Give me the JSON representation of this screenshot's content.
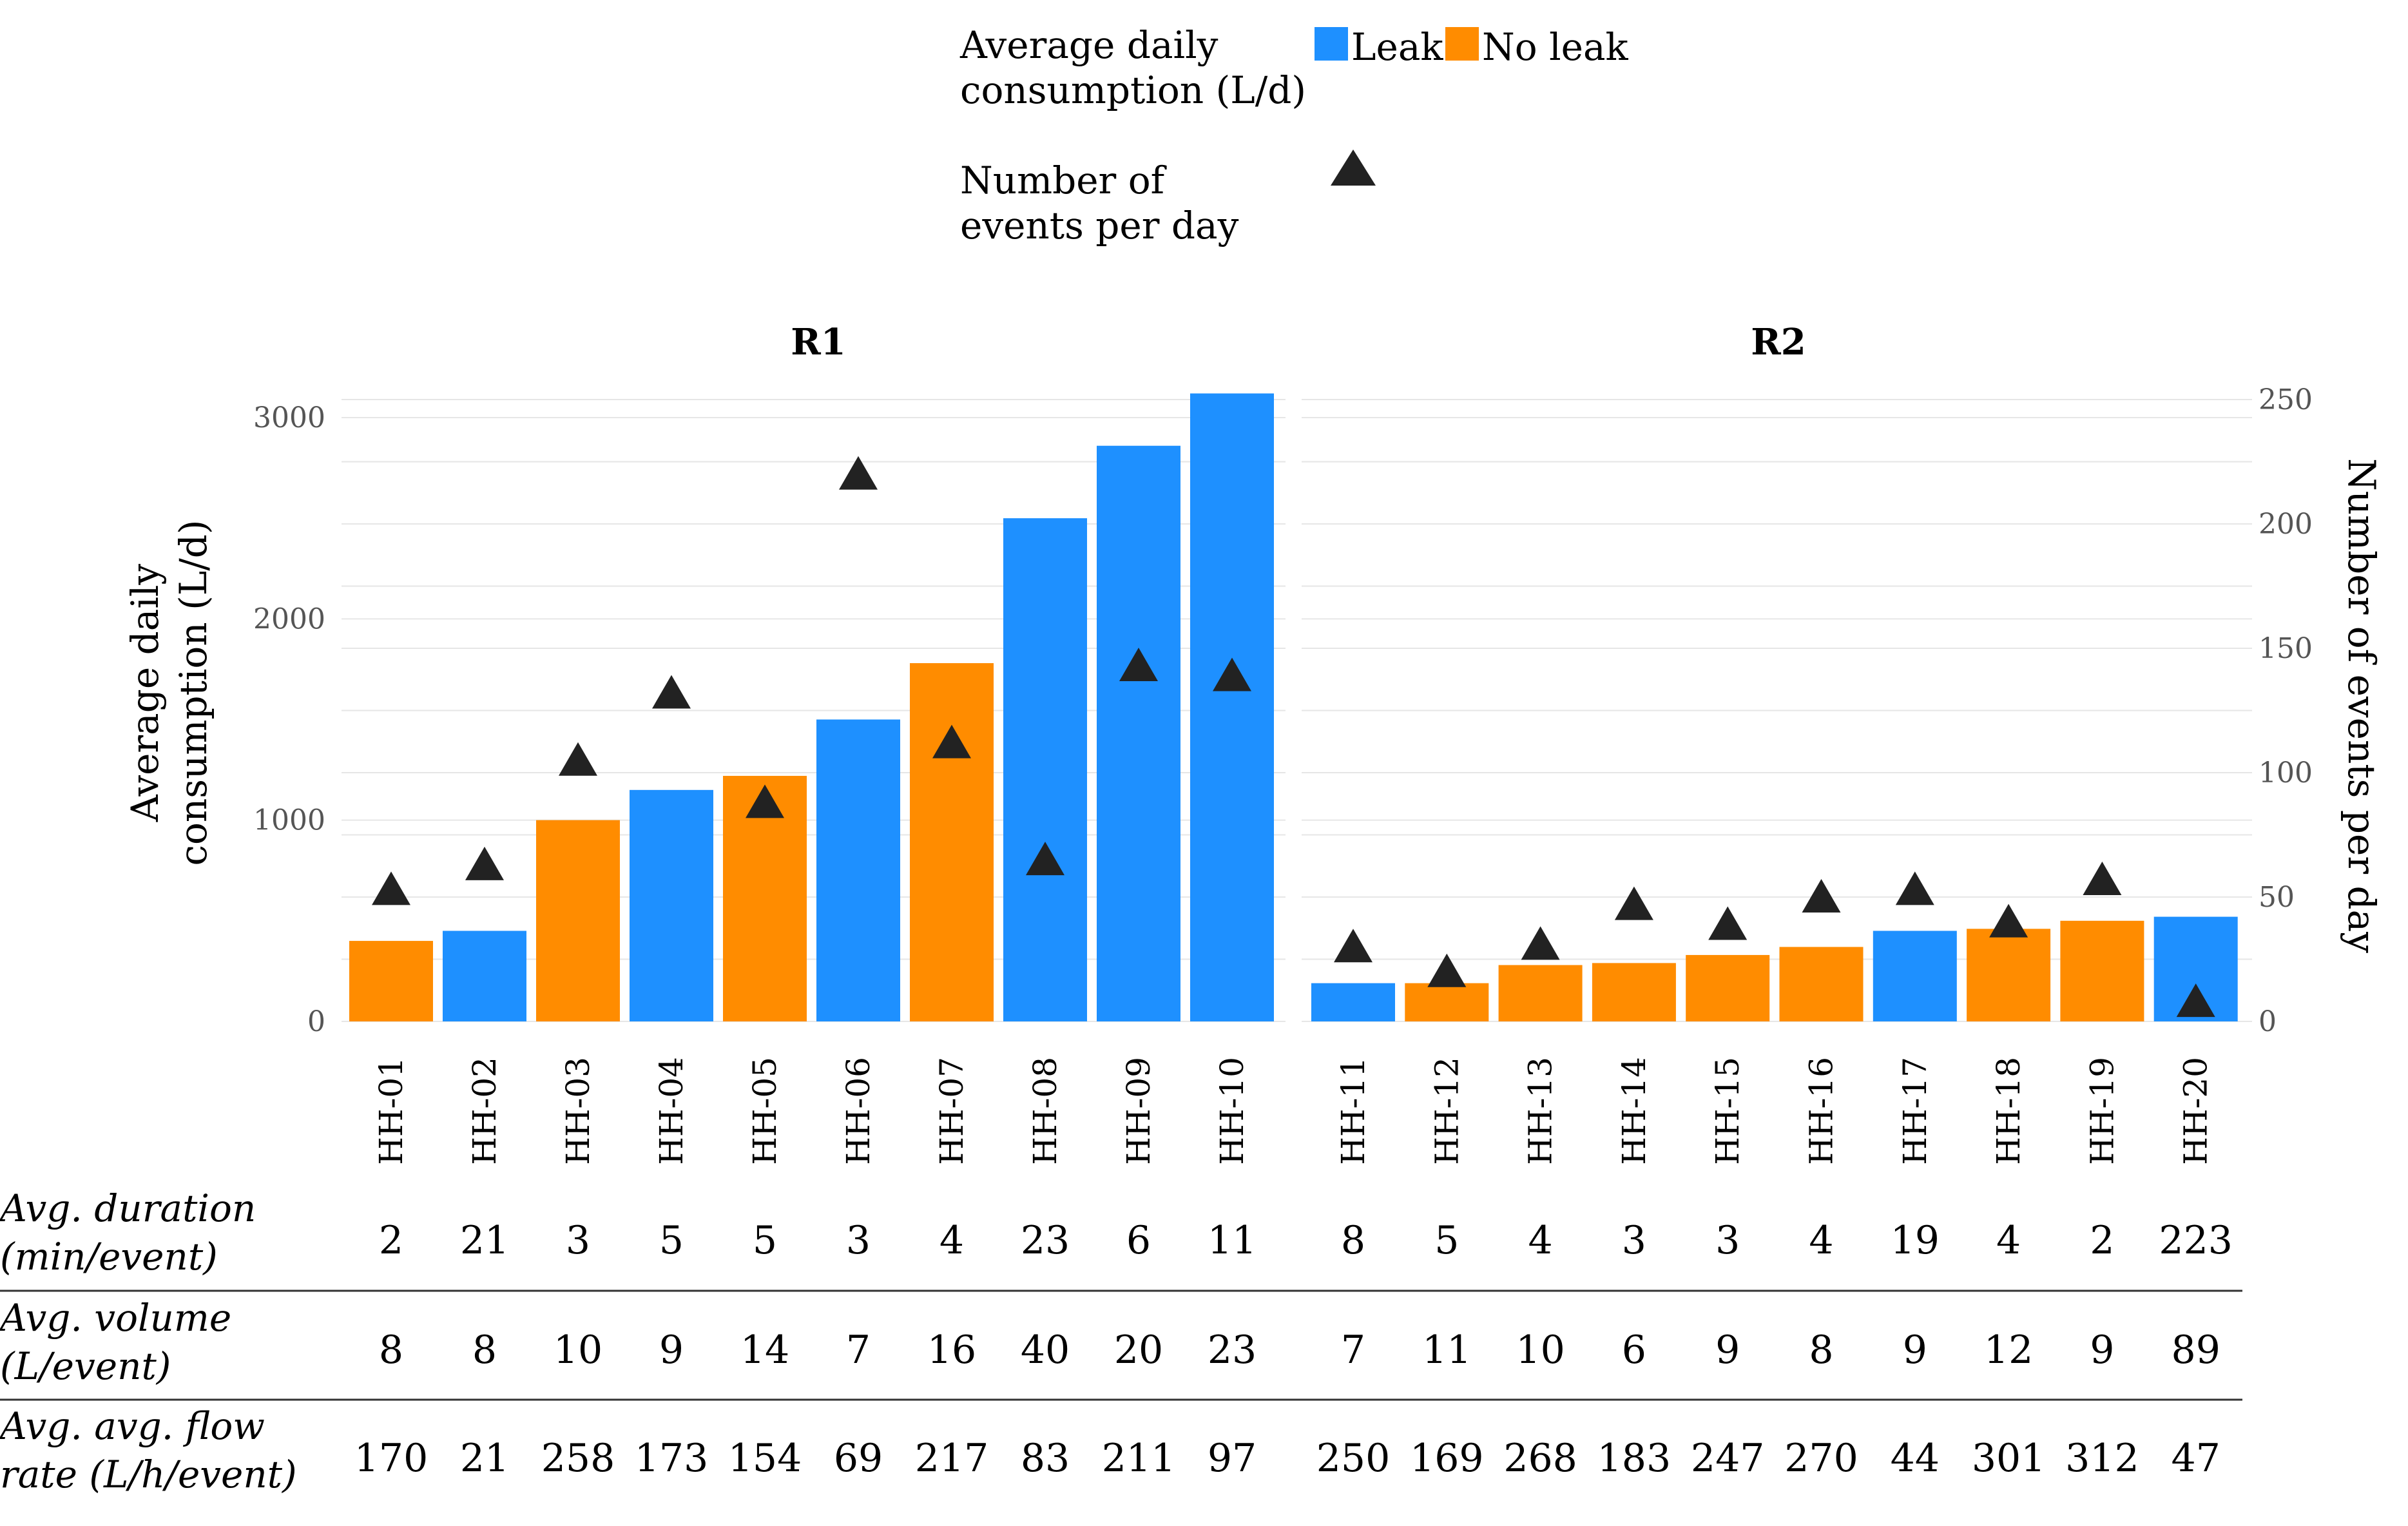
{
  "chart_data": {
    "type": "bar",
    "legend": {
      "consumption_title_line1": "Average daily",
      "consumption_title_line2": "consumption (L/d)",
      "leak_label": "Leak",
      "noleak_label": "No leak",
      "events_title_line1": "Number of",
      "events_title_line2": "events per day"
    },
    "colors": {
      "leak": "#1E90FF",
      "noleak": "#FF8C00",
      "marker": "#222222",
      "grid": "#e6e6e6"
    },
    "panels": [
      {
        "title": "R1",
        "categories": [
          "HH-01",
          "HH-02",
          "HH-03",
          "HH-04",
          "HH-05",
          "HH-06",
          "HH-07",
          "HH-08",
          "HH-09",
          "HH-10"
        ]
      },
      {
        "title": "R2",
        "categories": [
          "HH-11",
          "HH-12",
          "HH-13",
          "HH-14",
          "HH-15",
          "HH-16",
          "HH-17",
          "HH-18",
          "HH-19",
          "HH-20"
        ]
      }
    ],
    "series": [
      {
        "name": "Average daily consumption (L/d)",
        "axis": "left",
        "values": [
          400,
          450,
          1000,
          1150,
          1220,
          1500,
          1780,
          2500,
          2860,
          3120,
          190,
          190,
          280,
          290,
          330,
          370,
          450,
          460,
          500,
          520
        ]
      },
      {
        "name": "Number of events per day",
        "axis": "right",
        "values": [
          53,
          63,
          105,
          132,
          88,
          220,
          112,
          65,
          143,
          139,
          30,
          20,
          31,
          47,
          39,
          50,
          53,
          40,
          57,
          8
        ]
      }
    ],
    "leak": [
      false,
      true,
      false,
      true,
      false,
      true,
      false,
      true,
      true,
      true,
      true,
      false,
      false,
      false,
      false,
      false,
      true,
      false,
      false,
      true
    ],
    "ylabel_left_line1": "Average daily",
    "ylabel_left_line2": "consumption (L/d)",
    "ylabel_right": "Number of events per day",
    "ylim_left": [
      0,
      3100
    ],
    "yticks_left": [
      "0",
      "1000",
      "2000",
      "3000"
    ],
    "ylim_right": [
      0,
      250
    ],
    "yticks_right": [
      "0",
      "50",
      "100",
      "150",
      "200",
      "250"
    ],
    "grid": true,
    "table": {
      "rows": [
        {
          "label_line1": "Avg. duration",
          "label_line2": "(min/event)",
          "values": [
            "2",
            "21",
            "3",
            "5",
            "5",
            "3",
            "4",
            "23",
            "6",
            "11",
            "8",
            "5",
            "4",
            "3",
            "3",
            "4",
            "19",
            "4",
            "2",
            "223"
          ]
        },
        {
          "label_line1": "Avg. volume",
          "label_line2": "(L/event)",
          "values": [
            "8",
            "8",
            "10",
            "9",
            "14",
            "7",
            "16",
            "40",
            "20",
            "23",
            "7",
            "11",
            "10",
            "6",
            "9",
            "8",
            "9",
            "12",
            "9",
            "89"
          ]
        },
        {
          "label_line1": "Avg. avg. flow",
          "label_line2": "rate (L/h/event)",
          "values": [
            "170",
            "21",
            "258",
            "173",
            "154",
            "69",
            "217",
            "83",
            "211",
            "97",
            "250",
            "169",
            "268",
            "183",
            "247",
            "270",
            "44",
            "301",
            "312",
            "47"
          ]
        }
      ]
    }
  }
}
